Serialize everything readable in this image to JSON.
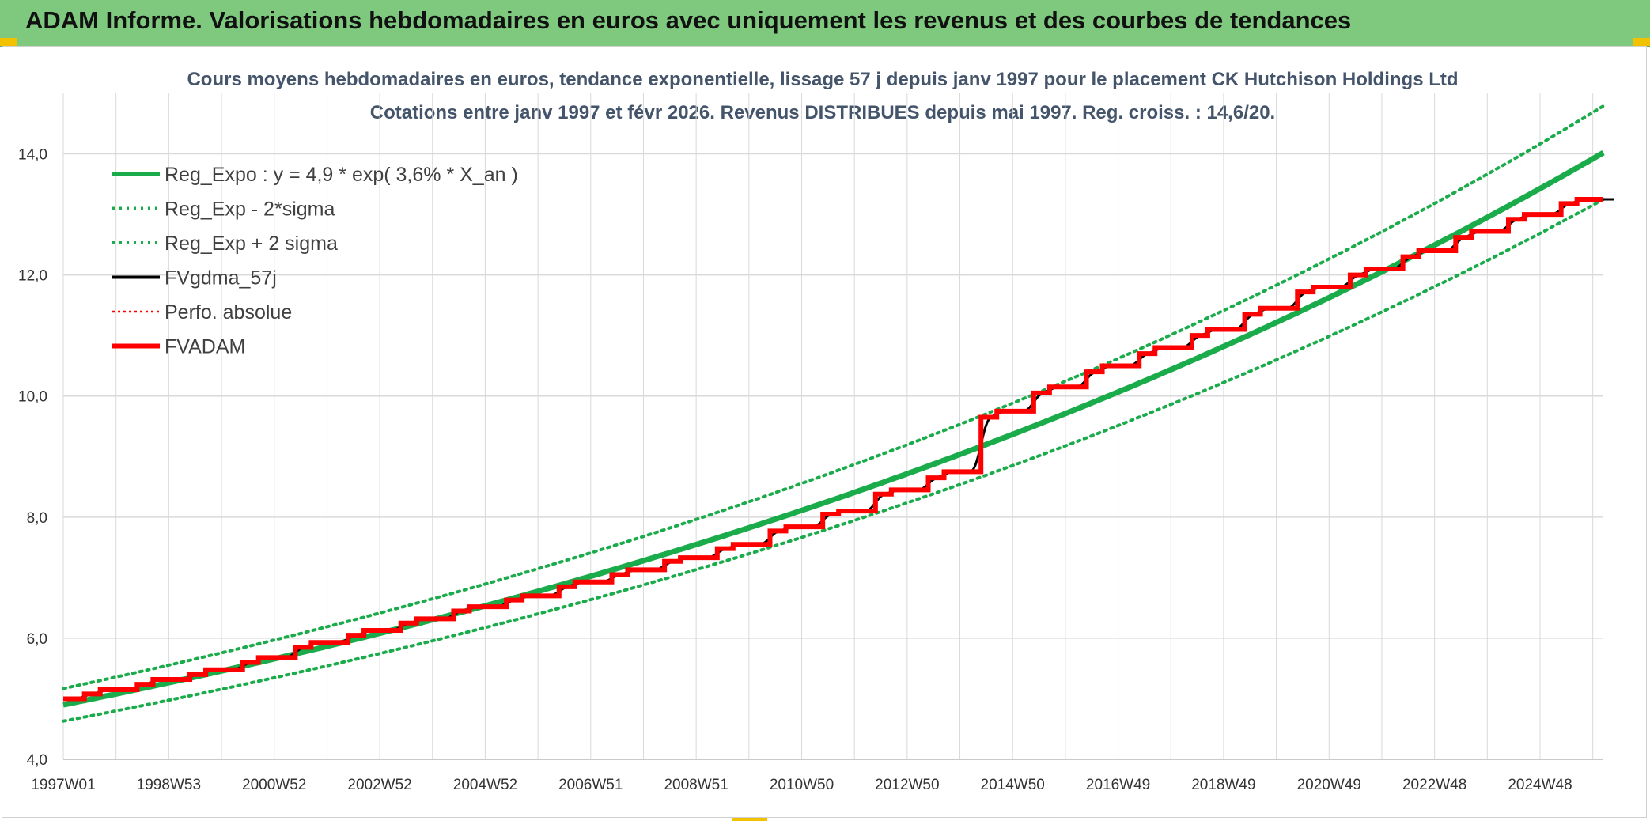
{
  "banner": {
    "title": "ADAM Informe. Valorisations hebdomadaires en euros avec uniquement les revenus et des courbes de tendances"
  },
  "colors": {
    "banner_bg": "#7fc97f",
    "accent_yellow": "#f2c200",
    "trend_green": "#1aab4a",
    "fv_black": "#000000",
    "adam_red": "#ff0000",
    "grid": "#d9d9d9"
  },
  "chart_data": {
    "type": "line",
    "title_lines": [
      "Cours moyens hebdomadaires en euros, tendance exponentielle, lissage 57 j depuis janv 1997 pour le placement CK Hutchison Holdings Ltd",
      "Cotations entre janv 1997 et févr 2026. Revenus DISTRIBUES depuis mai 1997. Reg. croiss. : 14,6/20."
    ],
    "ylim": [
      4.0,
      15.0
    ],
    "yticks": [
      "4,0",
      "6,0",
      "8,0",
      "10,0",
      "12,0",
      "14,0"
    ],
    "xlim": [
      1997.0,
      2026.2
    ],
    "xticks": [
      "1997W01",
      "1998W53",
      "2000W52",
      "2002W52",
      "2004W52",
      "2006W51",
      "2008W51",
      "2010W50",
      "2012W50",
      "2014W50",
      "2016W49",
      "2018W49",
      "2020W49",
      "2022W48",
      "2024W48"
    ],
    "grid": true,
    "legend_position": "top-left",
    "trend": {
      "a": 4.9,
      "rate": 0.036,
      "start": 1997.0,
      "band_factor": 0.055
    },
    "series": [
      {
        "name": "Reg_Expo : y = 4,9 * exp( 3,6% *  X_an )",
        "style": "solid-thick",
        "color": "#1aab4a"
      },
      {
        "name": "Reg_Exp - 2*sigma",
        "style": "dotted",
        "color": "#1aab4a"
      },
      {
        "name": "Reg_Exp + 2 sigma",
        "style": "dotted",
        "color": "#1aab4a"
      },
      {
        "name": "FVgdma_57j",
        "style": "solid",
        "color": "#000000"
      },
      {
        "name": "Perfo. absolue",
        "style": "dotted-thin",
        "color": "#ff0000"
      },
      {
        "name": "FVADAM",
        "style": "solid-thick",
        "color": "#ff0000"
      }
    ],
    "fvadam_steps": [
      {
        "x": 1997.0,
        "y": 5.0
      },
      {
        "x": 1997.4,
        "y": 5.08
      },
      {
        "x": 1997.7,
        "y": 5.15
      },
      {
        "x": 1998.4,
        "y": 5.24
      },
      {
        "x": 1998.7,
        "y": 5.32
      },
      {
        "x": 1999.4,
        "y": 5.4
      },
      {
        "x": 1999.7,
        "y": 5.48
      },
      {
        "x": 2000.4,
        "y": 5.6
      },
      {
        "x": 2000.7,
        "y": 5.68
      },
      {
        "x": 2001.4,
        "y": 5.85
      },
      {
        "x": 2001.7,
        "y": 5.93
      },
      {
        "x": 2002.4,
        "y": 6.05
      },
      {
        "x": 2002.7,
        "y": 6.13
      },
      {
        "x": 2003.4,
        "y": 6.25
      },
      {
        "x": 2003.7,
        "y": 6.32
      },
      {
        "x": 2004.4,
        "y": 6.45
      },
      {
        "x": 2004.7,
        "y": 6.52
      },
      {
        "x": 2005.4,
        "y": 6.63
      },
      {
        "x": 2005.7,
        "y": 6.7
      },
      {
        "x": 2006.4,
        "y": 6.85
      },
      {
        "x": 2006.7,
        "y": 6.93
      },
      {
        "x": 2007.4,
        "y": 7.05
      },
      {
        "x": 2007.7,
        "y": 7.13
      },
      {
        "x": 2008.4,
        "y": 7.27
      },
      {
        "x": 2008.7,
        "y": 7.33
      },
      {
        "x": 2009.4,
        "y": 7.48
      },
      {
        "x": 2009.7,
        "y": 7.55
      },
      {
        "x": 2010.4,
        "y": 7.77
      },
      {
        "x": 2010.7,
        "y": 7.84
      },
      {
        "x": 2011.4,
        "y": 8.05
      },
      {
        "x": 2011.7,
        "y": 8.1
      },
      {
        "x": 2012.4,
        "y": 8.38
      },
      {
        "x": 2012.7,
        "y": 8.45
      },
      {
        "x": 2013.4,
        "y": 8.65
      },
      {
        "x": 2013.7,
        "y": 8.75
      },
      {
        "x": 2014.4,
        "y": 9.65
      },
      {
        "x": 2014.7,
        "y": 9.75
      },
      {
        "x": 2015.4,
        "y": 10.05
      },
      {
        "x": 2015.7,
        "y": 10.15
      },
      {
        "x": 2016.4,
        "y": 10.4
      },
      {
        "x": 2016.7,
        "y": 10.5
      },
      {
        "x": 2017.4,
        "y": 10.7
      },
      {
        "x": 2017.7,
        "y": 10.8
      },
      {
        "x": 2018.4,
        "y": 11.0
      },
      {
        "x": 2018.7,
        "y": 11.1
      },
      {
        "x": 2019.4,
        "y": 11.35
      },
      {
        "x": 2019.7,
        "y": 11.45
      },
      {
        "x": 2020.4,
        "y": 11.72
      },
      {
        "x": 2020.7,
        "y": 11.8
      },
      {
        "x": 2021.4,
        "y": 12.0
      },
      {
        "x": 2021.7,
        "y": 12.1
      },
      {
        "x": 2022.4,
        "y": 12.3
      },
      {
        "x": 2022.7,
        "y": 12.4
      },
      {
        "x": 2023.4,
        "y": 12.62
      },
      {
        "x": 2023.7,
        "y": 12.72
      },
      {
        "x": 2024.4,
        "y": 12.92
      },
      {
        "x": 2024.7,
        "y": 13.0
      },
      {
        "x": 2025.4,
        "y": 13.18
      },
      {
        "x": 2025.7,
        "y": 13.25
      },
      {
        "x": 2026.2,
        "y": 13.25
      }
    ]
  }
}
